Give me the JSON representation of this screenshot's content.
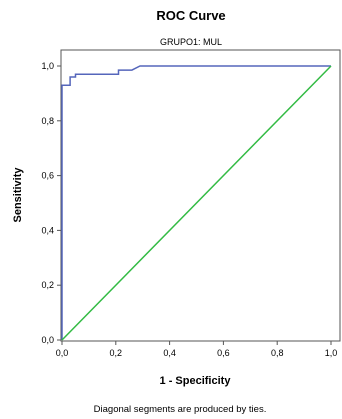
{
  "chart_data": {
    "type": "line",
    "title": "ROC Curve",
    "subtitle": "GRUPO1: MUL",
    "xlabel": "1 - Specificity",
    "ylabel": "Sensitivity",
    "footnote": "Diagonal segments are produced by ties.",
    "xlim": [
      0,
      1
    ],
    "ylim": [
      0,
      1
    ],
    "x_ticks": [
      "0,0",
      "0,2",
      "0,4",
      "0,6",
      "0,8",
      "1,0"
    ],
    "y_ticks": [
      "0,0",
      "0,2",
      "0,4",
      "0,6",
      "0,8",
      "1,0"
    ],
    "x_tick_values": [
      0,
      0.2,
      0.4,
      0.6,
      0.8,
      1.0
    ],
    "y_tick_values": [
      0,
      0.2,
      0.4,
      0.6,
      0.8,
      1.0
    ],
    "grid": false,
    "series": [
      {
        "color": "#5566bb",
        "x": [
          0.0,
          0.0,
          0.0,
          0.03,
          0.03,
          0.05,
          0.05,
          0.18,
          0.21,
          0.21,
          0.26,
          0.29,
          1.0
        ],
        "y": [
          0.0,
          0.93,
          0.93,
          0.93,
          0.96,
          0.96,
          0.97,
          0.97,
          0.97,
          0.985,
          0.985,
          1.0,
          1.0
        ]
      },
      {
        "color": "#33bb44",
        "x": [
          0.0,
          1.0
        ],
        "y": [
          0.0,
          1.0
        ]
      }
    ]
  }
}
